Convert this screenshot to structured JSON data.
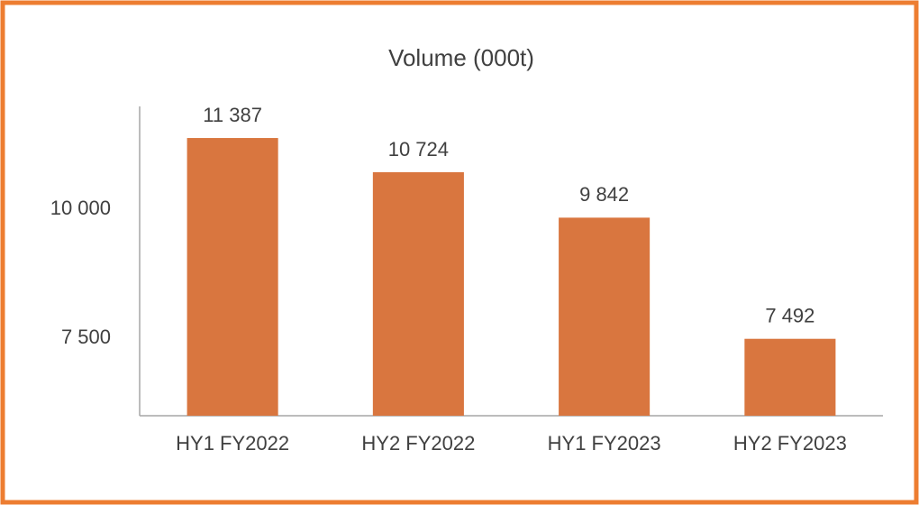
{
  "chart_data": {
    "type": "bar",
    "title": "Volume (000t)",
    "categories": [
      "HY1 FY2022",
      "HY2 FY2022",
      "HY1 FY2023",
      "HY2 FY2023"
    ],
    "values": [
      11387,
      10724,
      9842,
      7492
    ],
    "value_labels": [
      "11 387",
      "10 724",
      "9 842",
      "7 492"
    ],
    "color": "#d9763f",
    "ylim": [
      6000,
      12000
    ],
    "yticks": [
      {
        "value": 7500,
        "label": "7 500"
      },
      {
        "value": 10000,
        "label": "10 000"
      }
    ],
    "grid": false
  }
}
